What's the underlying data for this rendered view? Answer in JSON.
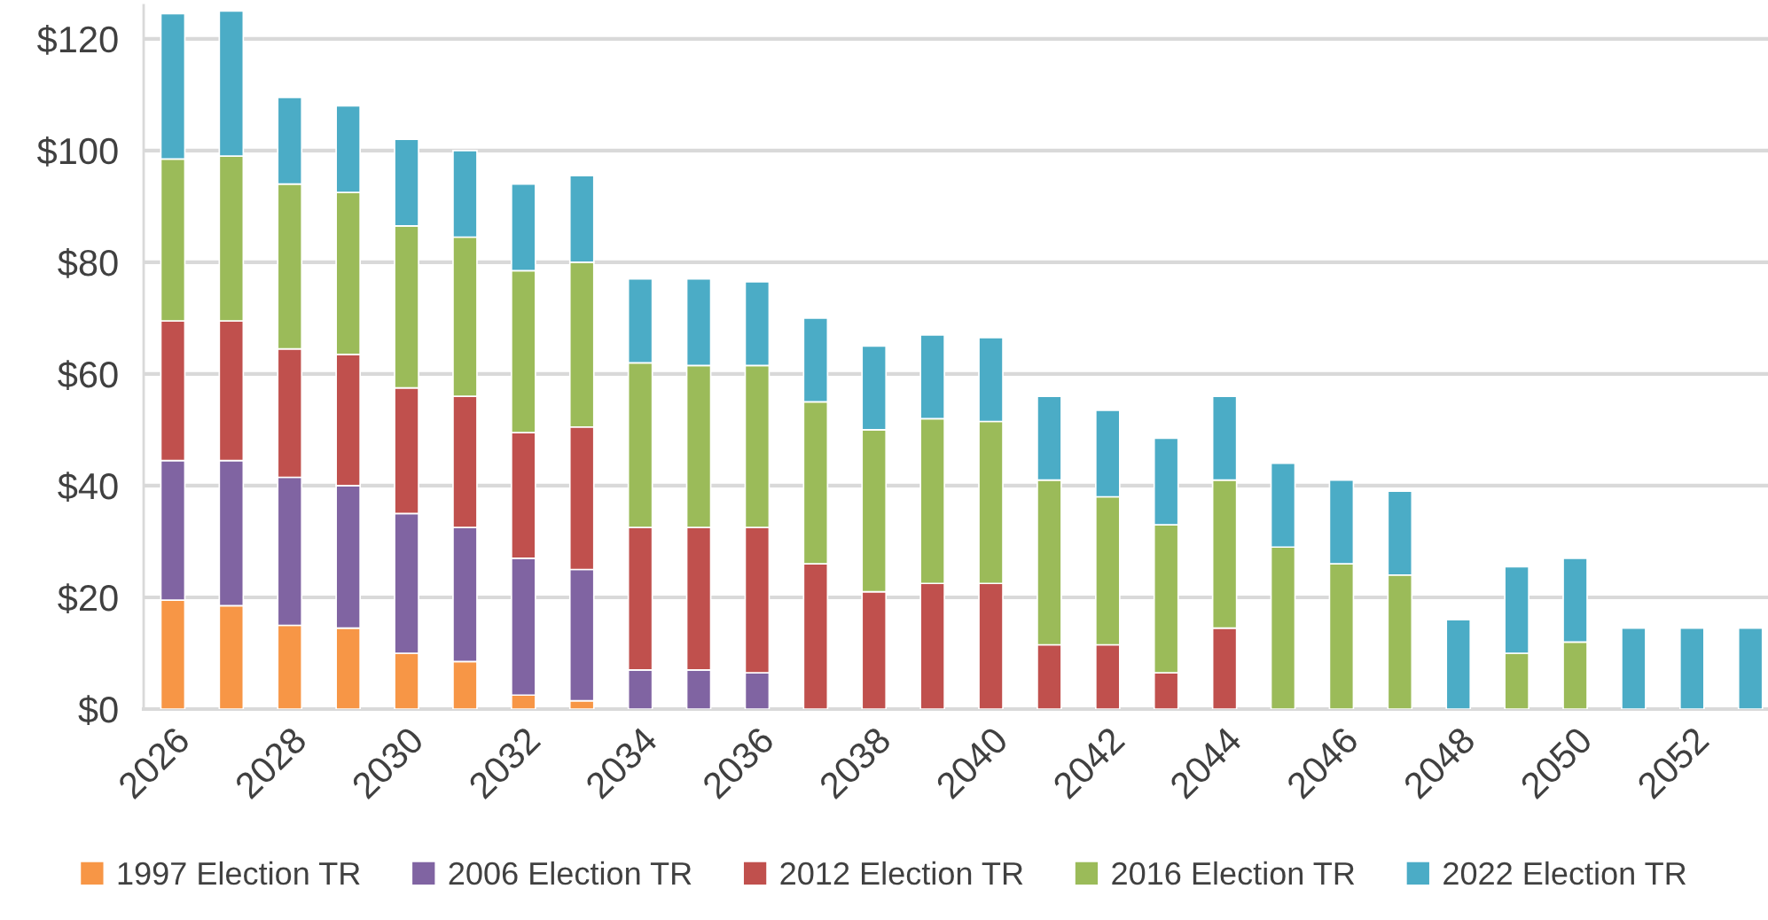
{
  "chart_data": {
    "type": "bar",
    "stacked": true,
    "categories": [
      "2026",
      null,
      "2028",
      null,
      "2030",
      null,
      "2032",
      null,
      "2034",
      null,
      "2036",
      null,
      "2038",
      null,
      "2040",
      null,
      "2042",
      null,
      "2044",
      null,
      "2046",
      null,
      "2048",
      null,
      "2050",
      null,
      "2052",
      null
    ],
    "series": [
      {
        "name": "1997 Election TR",
        "color": "#f79646",
        "values": [
          19.5,
          18.5,
          15,
          14.5,
          10,
          8.5,
          2.5,
          1.5,
          null,
          null,
          null,
          null,
          null,
          null,
          null,
          null,
          null,
          null,
          null,
          null,
          null,
          null,
          null,
          null,
          null,
          null,
          null,
          null
        ]
      },
      {
        "name": "2006 Election TR",
        "color": "#8064a2",
        "values": [
          25,
          26,
          26.5,
          25.5,
          25,
          24,
          24.5,
          23.5,
          7,
          7,
          6.5,
          null,
          null,
          null,
          null,
          null,
          null,
          null,
          null,
          null,
          null,
          null,
          null,
          null,
          null,
          null,
          null,
          null
        ]
      },
      {
        "name": "2012 Election TR",
        "color": "#c0504d",
        "values": [
          25,
          25,
          23,
          23.5,
          22.5,
          23.5,
          22.5,
          25.5,
          25.5,
          25.5,
          26,
          26,
          21,
          22.5,
          22.5,
          11.5,
          11.5,
          6.5,
          14.5,
          null,
          null,
          null,
          null,
          null,
          null,
          null,
          null,
          null
        ]
      },
      {
        "name": "2016 Election TR",
        "color": "#9bbb59",
        "values": [
          29,
          29.5,
          29.5,
          29,
          29,
          28.5,
          29,
          29.5,
          29.5,
          29,
          29,
          29,
          29,
          29.5,
          29,
          29.5,
          26.5,
          26.5,
          26.5,
          29,
          26,
          24,
          null,
          10,
          12,
          null,
          null,
          null
        ]
      },
      {
        "name": "2022 Election TR",
        "color": "#4bacc6",
        "values": [
          26,
          26,
          15.5,
          15.5,
          15.5,
          15.5,
          15.5,
          15.5,
          15,
          15.5,
          15,
          15,
          15,
          15,
          15,
          15,
          15.5,
          15.5,
          15,
          15,
          15,
          15,
          16,
          15.5,
          15,
          14.5,
          14.5,
          14.5
        ]
      }
    ],
    "yticks": [
      {
        "value": 0,
        "label": "$0"
      },
      {
        "value": 20,
        "label": "$20"
      },
      {
        "value": 40,
        "label": "$40"
      },
      {
        "value": 60,
        "label": "$60"
      },
      {
        "value": 80,
        "label": "$80"
      },
      {
        "value": 100,
        "label": "$100"
      },
      {
        "value": 120,
        "label": "$120"
      }
    ],
    "ylim": [
      0,
      126
    ],
    "grid": "y",
    "legend": "bottom"
  }
}
